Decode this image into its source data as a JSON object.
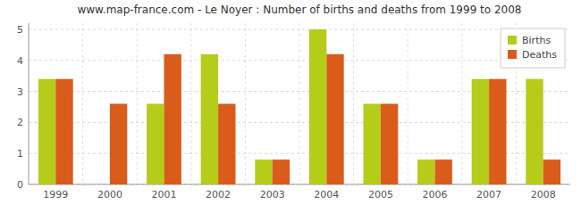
{
  "chart_data": {
    "type": "bar",
    "title": "www.map-france.com - Le Noyer : Number of births and deaths from 1999 to 2008",
    "categories": [
      "1999",
      "2000",
      "2001",
      "2002",
      "2003",
      "2004",
      "2005",
      "2006",
      "2007",
      "2008"
    ],
    "series": [
      {
        "name": "Births",
        "color": "#b5cc1a",
        "values": [
          3.4,
          0,
          2.6,
          4.2,
          0.8,
          5.0,
          2.6,
          0.8,
          3.4,
          3.4
        ]
      },
      {
        "name": "Deaths",
        "color": "#d95c1a",
        "values": [
          3.4,
          2.6,
          4.2,
          2.6,
          0.8,
          4.2,
          2.6,
          0.8,
          3.4,
          0.8
        ]
      }
    ],
    "ylim": [
      0,
      5.2
    ],
    "yticks": [
      0,
      1,
      2,
      3,
      4,
      5
    ],
    "grid": true,
    "legend": "upper right"
  }
}
